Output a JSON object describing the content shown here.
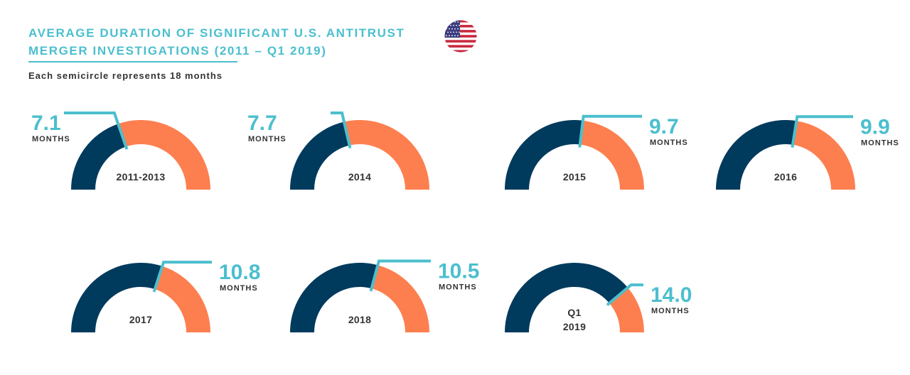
{
  "header": {
    "title_line1": "AVERAGE DURATION OF SIGNIFICANT U.S. ANTITRUST",
    "title_line2": "MERGER INVESTIGATIONS (2011 – Q1 2019)",
    "subtitle": "Each semicircle represents 18 months",
    "flag_icon": "us-flag-icon"
  },
  "colors": {
    "accent": "#4bbfce",
    "duration": "#003a5d",
    "remainder": "#fd7f4f",
    "label": "#333333",
    "flag_red": "#c8283c",
    "flag_blue": "#3b3b7e"
  },
  "chart_data": {
    "type": "semicircle-gauge",
    "title": "AVERAGE DURATION OF SIGNIFICANT U.S. ANTITRUST MERGER INVESTIGATIONS (2011 – Q1 2019)",
    "subtitle": "Each semicircle represents 18 months",
    "max": 18,
    "unit": "MONTHS",
    "categories": [
      "2011-2013",
      "2014",
      "2015",
      "2016",
      "2017",
      "2018",
      "Q1 2019"
    ],
    "values": [
      7.1,
      7.7,
      9.7,
      9.9,
      10.8,
      10.5,
      14.0
    ],
    "gauges": [
      {
        "category": [
          "2011-2013"
        ],
        "value": 7.1,
        "value_label": "7.1",
        "unit": "MONTHS"
      },
      {
        "category": [
          "2014"
        ],
        "value": 7.7,
        "value_label": "7.7",
        "unit": "MONTHS"
      },
      {
        "category": [
          "2015"
        ],
        "value": 9.7,
        "value_label": "9.7",
        "unit": "MONTHS"
      },
      {
        "category": [
          "2016"
        ],
        "value": 9.9,
        "value_label": "9.9",
        "unit": "MONTHS"
      },
      {
        "category": [
          "2017"
        ],
        "value": 10.8,
        "value_label": "10.8",
        "unit": "MONTHS"
      },
      {
        "category": [
          "2018"
        ],
        "value": 10.5,
        "value_label": "10.5",
        "unit": "MONTHS"
      },
      {
        "category": [
          "Q1",
          "2019"
        ],
        "value": 14.0,
        "value_label": "14.0",
        "unit": "MONTHS"
      }
    ]
  }
}
